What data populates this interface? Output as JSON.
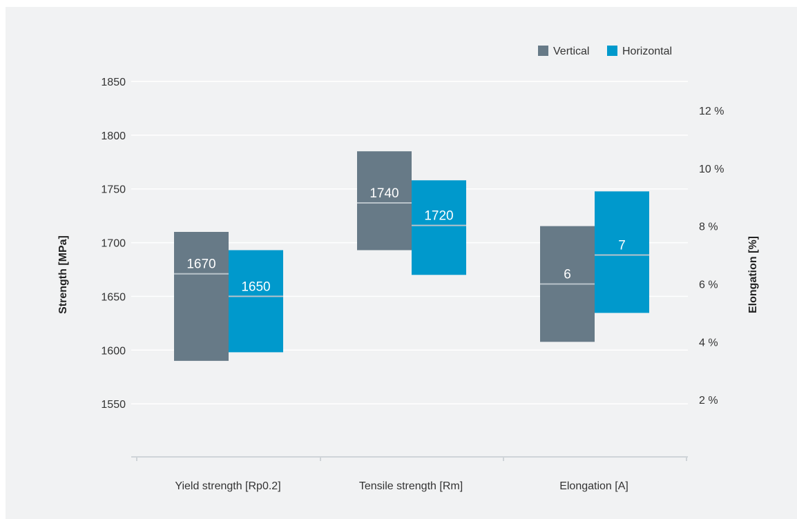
{
  "chart_data": {
    "type": "bar",
    "subtype": "floating-range-with-marker",
    "categories": [
      "Yield strength [Rp0.2]",
      "Tensile strength [Rm]",
      "Elongation [A]"
    ],
    "series": [
      {
        "name": "Vertical",
        "color": "#677a87",
        "ranges": [
          [
            1590,
            1710
          ],
          [
            1693,
            1785
          ],
          [
            4.0,
            8.0
          ]
        ],
        "marker": [
          1671,
          1737,
          6.0
        ],
        "labels": [
          "1670",
          "1740",
          "6"
        ],
        "axis": [
          "left",
          "left",
          "right"
        ]
      },
      {
        "name": "Horizontal",
        "color": "#0099cc",
        "ranges": [
          [
            1598,
            1693
          ],
          [
            1670,
            1758
          ],
          [
            5.0,
            9.2
          ]
        ],
        "marker": [
          1650,
          1716,
          7.0
        ],
        "labels": [
          "1650",
          "1720",
          "7"
        ],
        "axis": [
          "left",
          "left",
          "right"
        ]
      }
    ],
    "ylabel": "Strength [MPa]",
    "y2label": "Elongation [%]",
    "ylim": [
      1500,
      1850
    ],
    "y2lim": [
      0,
      13
    ],
    "yticks": [
      1550,
      1600,
      1650,
      1700,
      1750,
      1800,
      1850
    ],
    "ytick_labels": [
      "1550",
      "1600",
      "1650",
      "1700",
      "1750",
      "1800",
      "1850"
    ],
    "y2ticks": [
      2,
      4,
      6,
      8,
      10,
      12
    ],
    "y2tick_labels": [
      "2 %",
      "4 %",
      "6 %",
      "8 %",
      "10 %",
      "12 %"
    ],
    "grid": true,
    "legend_position": "top-right",
    "background": "#f1f2f3",
    "marker_color": "#b9c3ca"
  }
}
